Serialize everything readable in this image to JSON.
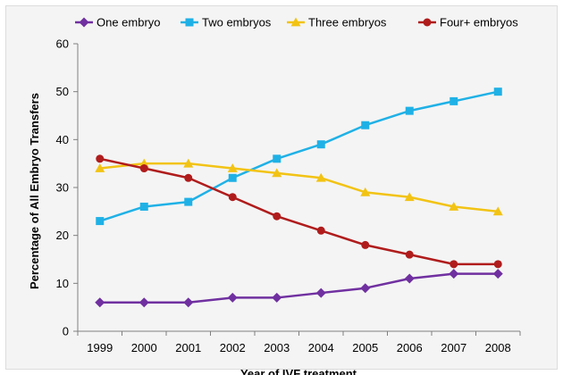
{
  "chart_data": {
    "type": "line",
    "title": "",
    "xlabel": "Year of IVF treatment",
    "ylabel": "Percentage of All Embryo Transfers",
    "categories": [
      "1999",
      "2000",
      "2001",
      "2002",
      "2003",
      "2004",
      "2005",
      "2006",
      "2007",
      "2008"
    ],
    "ylim": [
      0,
      60
    ],
    "yticks": [
      "0",
      "10",
      "20",
      "30",
      "40",
      "50",
      "60"
    ],
    "grid": false,
    "legend_position": "top",
    "series": [
      {
        "name": "One embryo",
        "color": "#7030a0",
        "marker": "diamond",
        "values": [
          6,
          6,
          6,
          7,
          7,
          8,
          9,
          11,
          12,
          12
        ]
      },
      {
        "name": "Two embryos",
        "color": "#1fb1e6",
        "marker": "square",
        "values": [
          23,
          26,
          27,
          32,
          36,
          39,
          43,
          46,
          48,
          50
        ]
      },
      {
        "name": "Three embryos",
        "color": "#f2c314",
        "marker": "triangle",
        "values": [
          34,
          35,
          35,
          34,
          33,
          32,
          29,
          28,
          26,
          25
        ]
      },
      {
        "name": "Four+ embryos",
        "color": "#b01c1c",
        "marker": "circle",
        "values": [
          36,
          34,
          32,
          28,
          24,
          21,
          18,
          16,
          14,
          14
        ]
      }
    ]
  }
}
